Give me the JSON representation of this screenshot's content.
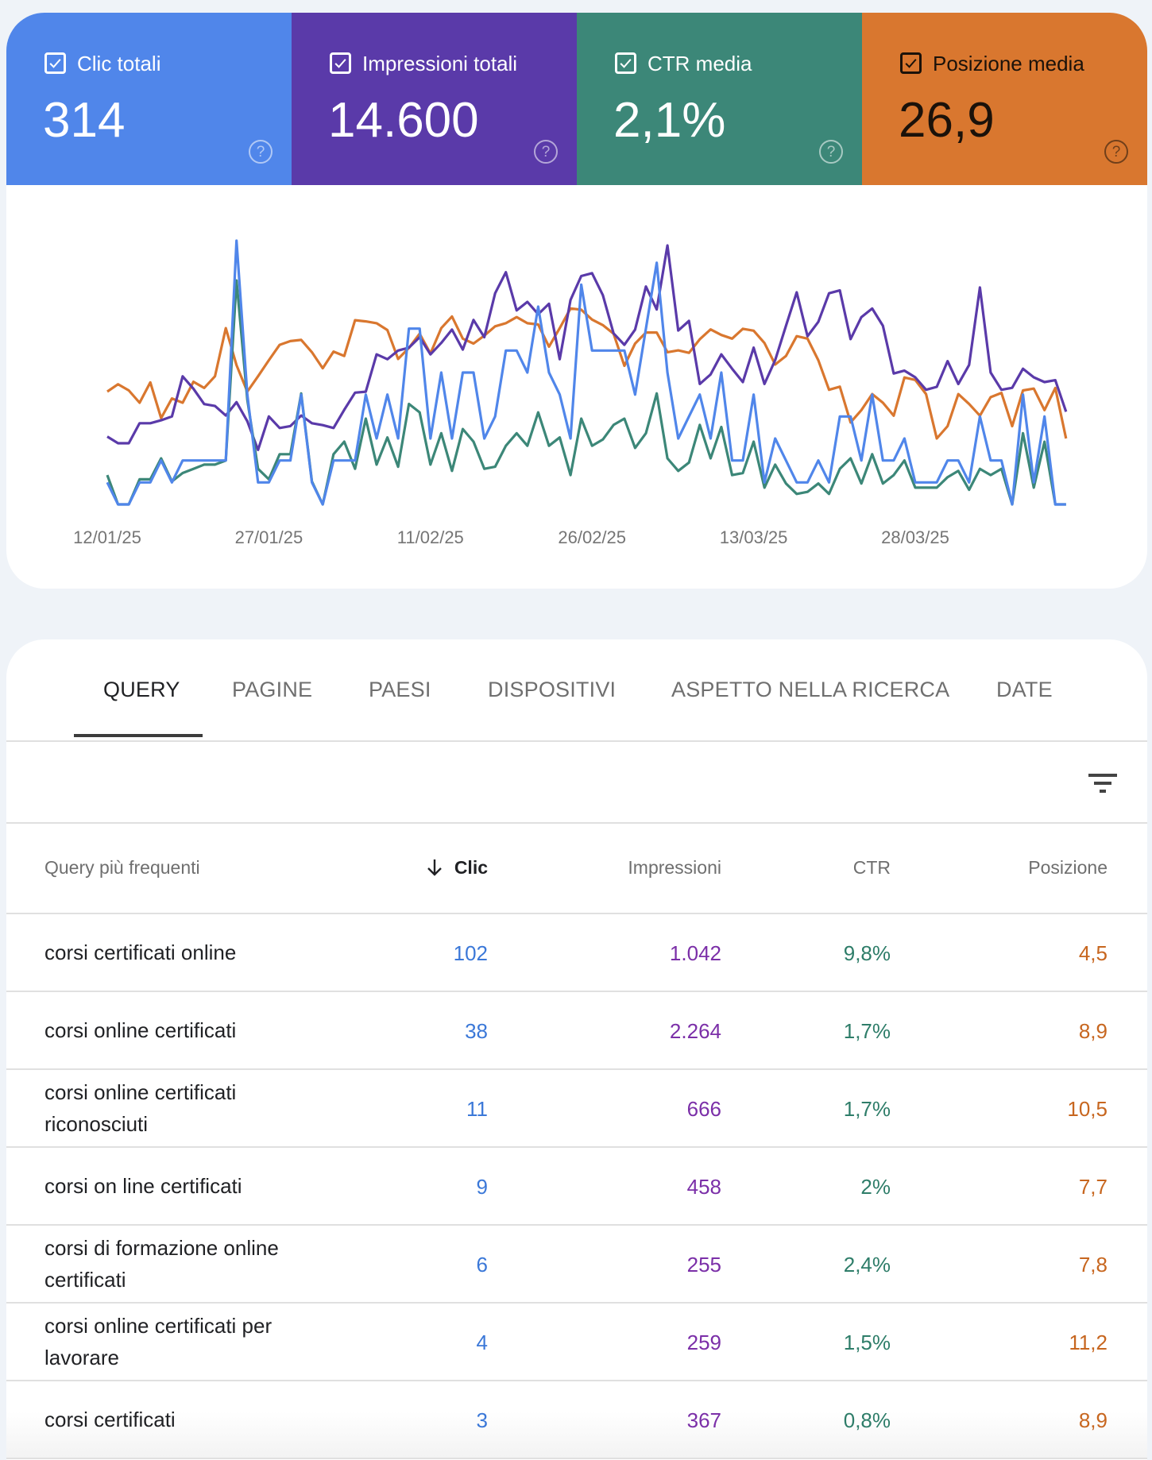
{
  "metrics": [
    {
      "key": "clicks",
      "label": "Clic totali",
      "value": "314",
      "checked": true,
      "bg": "#5086ea",
      "fg": "#ffffff",
      "help_icon": "help-circle-icon"
    },
    {
      "key": "impressions",
      "label": "Impressioni totali",
      "value": "14.600",
      "checked": true,
      "bg": "#5a3aa9",
      "fg": "#ffffff",
      "help_icon": "help-circle-icon"
    },
    {
      "key": "ctr",
      "label": "CTR media",
      "value": "2,1%",
      "checked": true,
      "bg": "#3c8778",
      "fg": "#ffffff",
      "help_icon": "help-circle-icon"
    },
    {
      "key": "position",
      "label": "Posizione media",
      "value": "26,9",
      "checked": true,
      "bg": "#d9772f",
      "fg": "#1b120a",
      "help_icon": "help-circle-icon"
    }
  ],
  "chart_data": {
    "type": "line",
    "title": "",
    "xlabel": "",
    "ylabel": "",
    "grid": false,
    "legend": "metric tiles above chart",
    "x_start": "12/01/25",
    "x_unit": "day",
    "x_tick_labels": [
      "12/01/25",
      "27/01/25",
      "11/02/25",
      "26/02/25",
      "13/03/25",
      "28/03/25"
    ],
    "x_tick_indices": [
      0,
      15,
      30,
      45,
      60,
      75
    ],
    "series": [
      {
        "name": "Clic",
        "key": "clicks",
        "color": "#5086ea",
        "ylim": [
          0,
          12
        ],
        "values": [
          1,
          0,
          0,
          1,
          1,
          2,
          1,
          2,
          2,
          2,
          2,
          2,
          12,
          5,
          1,
          1,
          2,
          2,
          5,
          1,
          0,
          2,
          2,
          2,
          5,
          3,
          5,
          3,
          8,
          8,
          3,
          6,
          3,
          6,
          6,
          3,
          4,
          7,
          7,
          6,
          9,
          6,
          5,
          3,
          10,
          7,
          7,
          7,
          7,
          5,
          8,
          11,
          6,
          3,
          4,
          5,
          3,
          6,
          2,
          2,
          5,
          1,
          3,
          2,
          1,
          1,
          2,
          1,
          4,
          4,
          2,
          5,
          2,
          2,
          3,
          1,
          1,
          1,
          2,
          2,
          1,
          4,
          2,
          2,
          0,
          5,
          1,
          4,
          0,
          0
        ]
      },
      {
        "name": "Impressioni",
        "key": "impressions",
        "color": "#5a3aa9",
        "ylim": [
          0,
          276
        ],
        "values": [
          71,
          64,
          64,
          85,
          85,
          88,
          92,
          134,
          121,
          105,
          103,
          93,
          107,
          87,
          57,
          92,
          80,
          82,
          93,
          85,
          83,
          80,
          99,
          117,
          118,
          157,
          152,
          161,
          164,
          175,
          157,
          169,
          183,
          162,
          193,
          175,
          221,
          243,
          203,
          212,
          199,
          210,
          152,
          214,
          239,
          242,
          219,
          179,
          167,
          183,
          228,
          204,
          271,
          182,
          192,
          126,
          136,
          157,
          142,
          128,
          164,
          126,
          151,
          187,
          222,
          176,
          191,
          221,
          224,
          173,
          196,
          205,
          187,
          137,
          140,
          133,
          120,
          123,
          150,
          126,
          146,
          227,
          138,
          120,
          122,
          142,
          133,
          128,
          130,
          97
        ]
      },
      {
        "name": "CTR",
        "key": "ctr",
        "color": "#3c8778",
        "ylim": [
          0,
          12.6
        ],
        "values": [
          1.4,
          0,
          0,
          1.2,
          1.2,
          2.2,
          1.1,
          1.5,
          1.7,
          1.9,
          1.9,
          2.1,
          10.7,
          5.0,
          1.7,
          1.2,
          2.4,
          2.4,
          5.3,
          1.1,
          0,
          2.4,
          3.0,
          1.7,
          4.1,
          1.9,
          3.2,
          1.8,
          4.8,
          4.4,
          1.9,
          3.4,
          1.6,
          3.6,
          3.0,
          1.7,
          1.8,
          2.8,
          3.4,
          2.8,
          4.4,
          2.8,
          3.2,
          1.4,
          4.1,
          2.8,
          3.1,
          3.8,
          4.1,
          2.7,
          3.4,
          5.3,
          2.2,
          1.6,
          2.0,
          3.8,
          2.2,
          3.7,
          1.4,
          1.5,
          3.0,
          0.8,
          1.9,
          1.0,
          0.5,
          0.6,
          1.0,
          0.5,
          1.7,
          2.2,
          1.0,
          2.4,
          1.0,
          1.4,
          2.1,
          0.8,
          0.8,
          0.8,
          1.3,
          1.6,
          0.7,
          1.7,
          1.4,
          1.7,
          0,
          3.4,
          0.8,
          3.0,
          0,
          0
        ]
      },
      {
        "name": "Posizione",
        "key": "position",
        "color": "#d9772f",
        "ylim": [
          50.8,
          8.0
        ],
        "inverted": true,
        "values": [
          32.5,
          31.3,
          32.3,
          34.3,
          31.0,
          36.8,
          33.6,
          34.3,
          30.9,
          31.9,
          30.0,
          22.2,
          28.2,
          32.5,
          30.0,
          27.4,
          24.9,
          24.3,
          24.1,
          26.1,
          28.7,
          26.0,
          26.7,
          20.9,
          21.1,
          21.4,
          22.5,
          27.2,
          25.4,
          23.1,
          26.3,
          22.2,
          20.3,
          23.9,
          24.7,
          23.4,
          21.9,
          21.4,
          20.4,
          21.4,
          21.6,
          25.2,
          22.2,
          19.0,
          19.2,
          20.8,
          21.7,
          23.1,
          28.3,
          24.7,
          22.9,
          22.9,
          26.1,
          25.8,
          26.2,
          24.0,
          22.4,
          23.3,
          23.9,
          22.3,
          22.6,
          24.6,
          28.1,
          26.7,
          23.5,
          23.9,
          27.4,
          32.2,
          31.7,
          37.5,
          35.5,
          32.9,
          34.3,
          36.4,
          30.2,
          30.6,
          32.9,
          40.1,
          38.1,
          32.9,
          34.5,
          36.4,
          33.4,
          32.7,
          38.1,
          32.3,
          32.0,
          35.5,
          31.9,
          40.1
        ]
      }
    ]
  },
  "tabs": [
    {
      "label": "QUERY",
      "active": true
    },
    {
      "label": "PAGINE",
      "active": false
    },
    {
      "label": "PAESI",
      "active": false
    },
    {
      "label": "DISPOSITIVI",
      "active": false
    },
    {
      "label": "ASPETTO NELLA RICERCA",
      "active": false
    },
    {
      "label": "DATE",
      "active": false
    }
  ],
  "filter_icon": "filter-list-icon",
  "table": {
    "columns": {
      "query": "Query più frequenti",
      "clicks": "Clic",
      "impressions": "Impressioni",
      "ctr": "CTR",
      "position": "Posizione"
    },
    "sorted_by": "clicks",
    "sort_direction": "desc",
    "rows": [
      {
        "query": "corsi certificati online",
        "clicks": "102",
        "impressions": "1.042",
        "ctr": "9,8%",
        "position": "4,5"
      },
      {
        "query": "corsi online certificati",
        "clicks": "38",
        "impressions": "2.264",
        "ctr": "1,7%",
        "position": "8,9"
      },
      {
        "query": "corsi online certificati riconosciuti",
        "clicks": "11",
        "impressions": "666",
        "ctr": "1,7%",
        "position": "10,5"
      },
      {
        "query": "corsi on line certificati",
        "clicks": "9",
        "impressions": "458",
        "ctr": "2%",
        "position": "7,7"
      },
      {
        "query": "corsi di formazione online certificati",
        "clicks": "6",
        "impressions": "255",
        "ctr": "2,4%",
        "position": "7,8"
      },
      {
        "query": "corsi online certificati per lavorare",
        "clicks": "4",
        "impressions": "259",
        "ctr": "1,5%",
        "position": "11,2"
      },
      {
        "query": "corsi certificati",
        "clicks": "3",
        "impressions": "367",
        "ctr": "0,8%",
        "position": "8,9"
      }
    ]
  }
}
